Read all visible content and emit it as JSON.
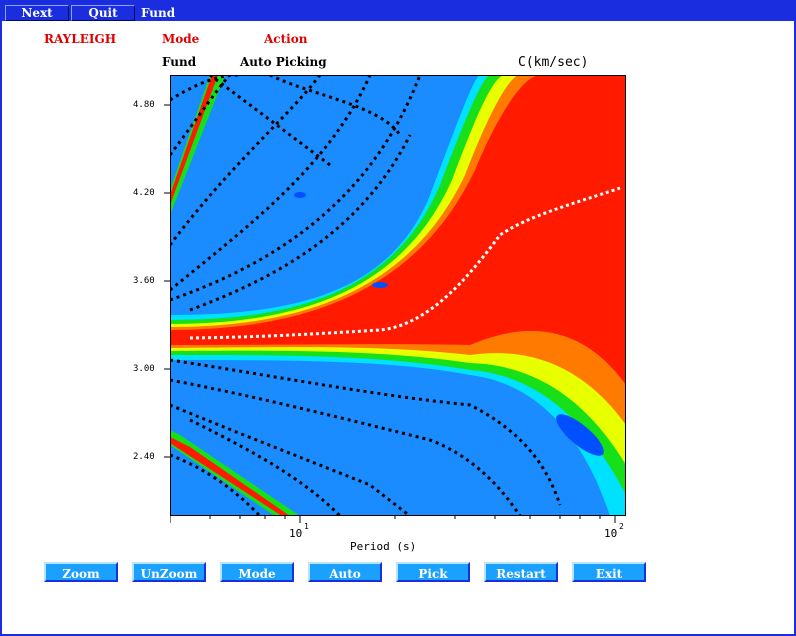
{
  "menubar": {
    "next_label": "Next",
    "quit_label": "Quit",
    "title": "Fund"
  },
  "header": {
    "wave_type": "RAYLEIGH",
    "mode_heading": "Mode",
    "action_heading": "Action",
    "mode_value": "Fund",
    "action_value": "Auto Picking",
    "units": "C(km/sec)"
  },
  "plot": {
    "y_ticks": [
      "4.80",
      "4.20",
      "3.60",
      "3.00",
      "2.40"
    ],
    "x_tick_base": "10",
    "x_tick_exps": [
      "1",
      "2"
    ],
    "xlabel": "Period (s)",
    "colors": {
      "background": "#1a8cff",
      "red": "#ff1a00",
      "orange": "#ff7a00",
      "yellow": "#e8ff00",
      "green": "#18e018",
      "cyan": "#00e0ff",
      "deep": "#0040ff"
    }
  },
  "buttons": [
    "Zoom",
    "UnZoom",
    "Mode",
    "Auto",
    "Pick",
    "Restart",
    "Exit"
  ]
}
